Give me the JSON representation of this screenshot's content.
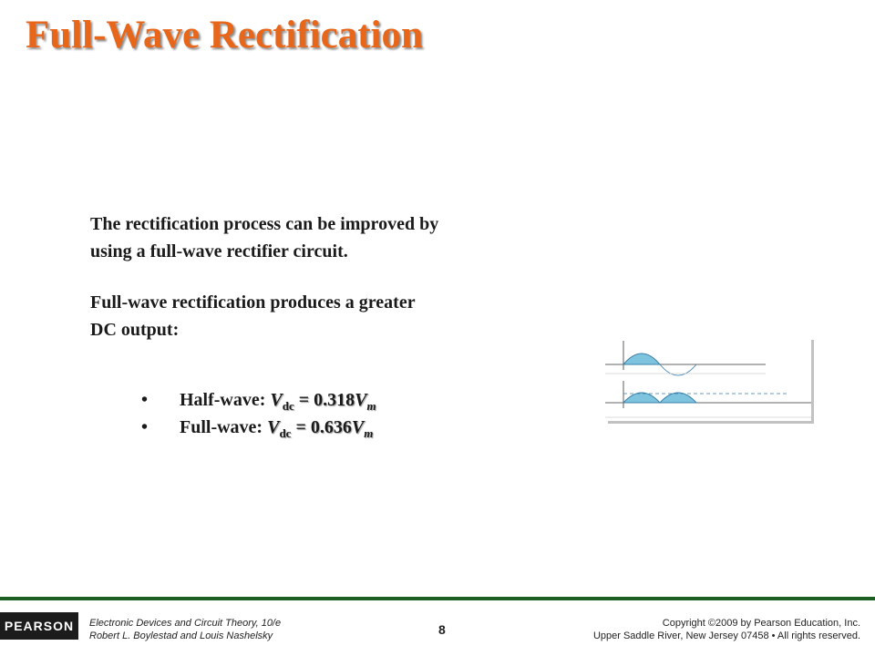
{
  "slide": {
    "title": "Full-Wave Rectification",
    "paragraph1_line1": "The rectification process can be improved by",
    "paragraph1_line2": "using a full-wave rectifier circuit.",
    "paragraph2_line1": "Full-wave rectification produces a greater",
    "paragraph2_line2": "DC output:",
    "bullets": [
      {
        "marker": "•",
        "label": "Half-wave: ",
        "var": "V",
        "sub": "dc",
        "eq": " = 0.318",
        "var2": "V",
        "sub2": "m"
      },
      {
        "marker": "•",
        "label": "Full-wave: ",
        "var": "V",
        "sub": "dc",
        "eq": " = 0.636",
        "var2": "V",
        "sub2": "m"
      }
    ]
  },
  "figure": {
    "colors": {
      "fill": "#7ec4de",
      "axis": "#333333",
      "line": "#3a7fa8"
    }
  },
  "footer": {
    "publisher_logo": "PEARSON",
    "book_line1": "Electronic Devices and Circuit Theory, 10/e",
    "book_line2": "Robert L. Boylestad and Louis Nashelsky",
    "page_number": "8",
    "copyright_line1": "Copyright ©2009 by Pearson Education, Inc.",
    "copyright_line2": "Upper Saddle River, New Jersey 07458 • All rights reserved."
  }
}
